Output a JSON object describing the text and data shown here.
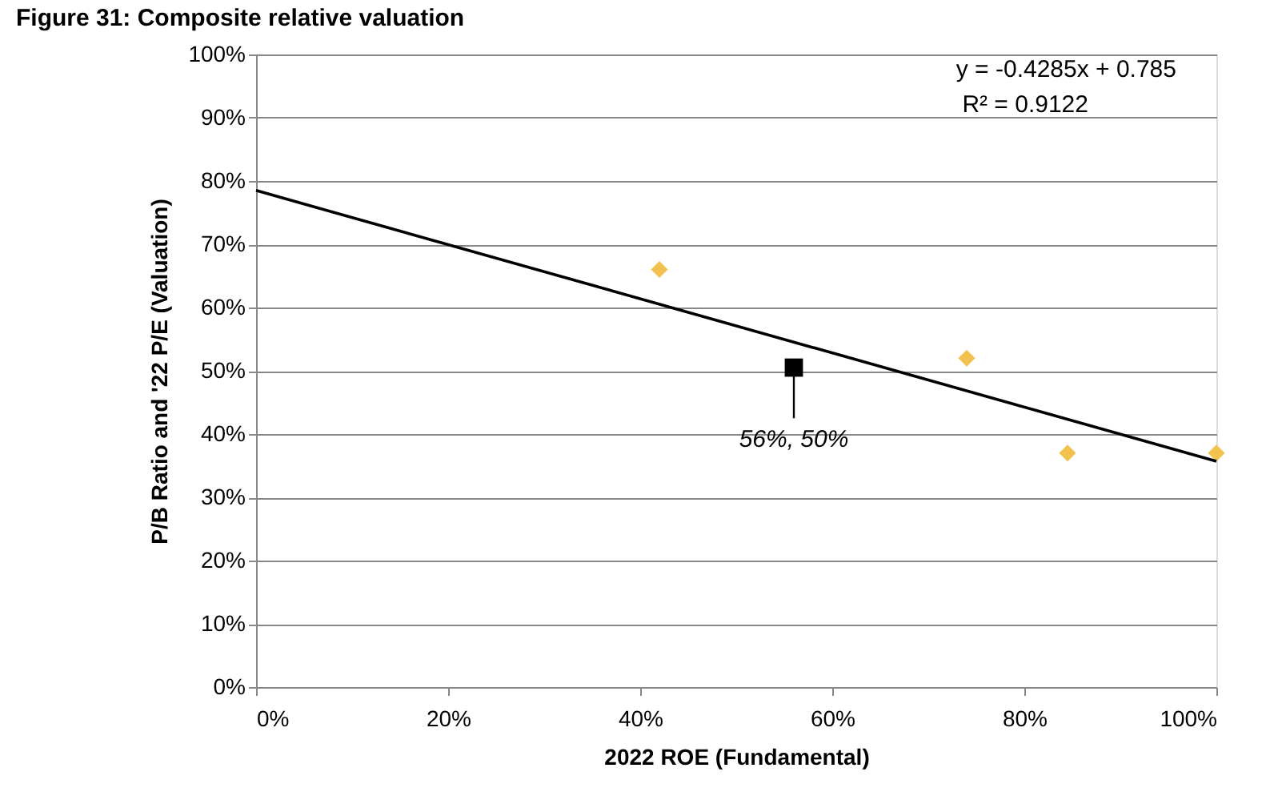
{
  "chart_data": {
    "type": "scatter",
    "title": "Figure 31: Composite relative valuation",
    "xlabel": "2022 ROE (Fundamental)",
    "ylabel": "P/B Ratio and '22 P/E (Valuation)",
    "xlim": [
      0,
      100
    ],
    "ylim": [
      0,
      100
    ],
    "xticks": [
      {
        "value": 0,
        "label": "0%"
      },
      {
        "value": 20,
        "label": "20%"
      },
      {
        "value": 40,
        "label": "40%"
      },
      {
        "value": 60,
        "label": "60%"
      },
      {
        "value": 80,
        "label": "80%"
      },
      {
        "value": 100,
        "label": "100%"
      }
    ],
    "yticks": [
      {
        "value": 0,
        "label": "0%"
      },
      {
        "value": 10,
        "label": "10%"
      },
      {
        "value": 20,
        "label": "20%"
      },
      {
        "value": 30,
        "label": "30%"
      },
      {
        "value": 40,
        "label": "40%"
      },
      {
        "value": 50,
        "label": "50%"
      },
      {
        "value": 60,
        "label": "60%"
      },
      {
        "value": 70,
        "label": "70%"
      },
      {
        "value": 80,
        "label": "80%"
      },
      {
        "value": 90,
        "label": "90%"
      },
      {
        "value": 100,
        "label": "100%"
      }
    ],
    "grid": "y",
    "series": [
      {
        "marker": "diamond",
        "color": "#f2c14e",
        "x": [
          42,
          74,
          84.5,
          100
        ],
        "values": [
          66,
          52,
          37,
          37
        ]
      },
      {
        "marker": "square",
        "color": "#000000",
        "x": [
          56
        ],
        "values": [
          50.5
        ]
      },
      {
        "type": "line",
        "marker": "none",
        "color": "#000000",
        "x": [
          0,
          100
        ],
        "values": [
          78.5,
          35.7
        ]
      }
    ],
    "annotations": [
      "y = -0.4285x + 0.785",
      "R² = 0.9122",
      {
        "text": "56%, 50%",
        "x": 56,
        "y": 50.5
      }
    ]
  }
}
